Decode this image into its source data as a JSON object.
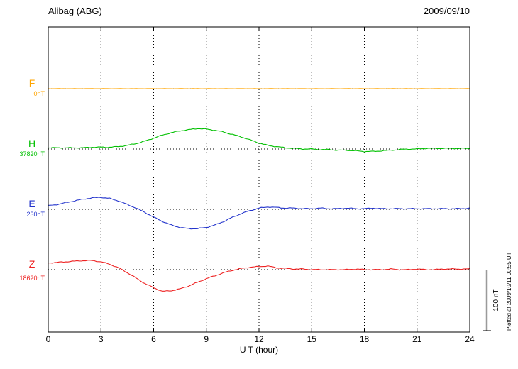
{
  "header": {
    "title": "Alibag (ABG)",
    "date": "2009/09/10"
  },
  "x_axis": {
    "label": "U T (hour)",
    "ticks": [
      0,
      3,
      6,
      9,
      12,
      15,
      18,
      21,
      24
    ],
    "min": 0,
    "max": 24
  },
  "scale_bar": {
    "label": "100 nT",
    "span_nT": 100
  },
  "footnote": "Plotted at 2009/10/11 00:55 UT",
  "colors": {
    "F": "#FFA500",
    "H": "#00C000",
    "E": "#2233CC",
    "Z": "#EE2222",
    "axis": "#000000"
  },
  "chart_data": {
    "type": "line",
    "title": "Alibag (ABG) magnetogram 2009/09/10",
    "xlabel": "U T (hour)",
    "x_range": [
      0,
      24
    ],
    "y_units": "nT offset from component baseline",
    "scale_nT_per_division": 100,
    "grid": "dotted vertical every 3 h, dotted horizontal at each component baseline",
    "x": [
      0,
      0.5,
      1,
      1.5,
      2,
      2.5,
      3,
      3.5,
      4,
      4.5,
      5,
      5.5,
      6,
      6.5,
      7,
      7.5,
      8,
      8.5,
      9,
      9.5,
      10,
      10.5,
      11,
      11.5,
      12,
      12.5,
      13,
      13.5,
      14,
      14.5,
      15,
      15.5,
      16,
      16.5,
      17,
      17.5,
      18,
      18.5,
      19,
      19.5,
      20,
      20.5,
      21,
      21.5,
      22,
      22.5,
      23,
      23.5,
      24
    ],
    "series": [
      {
        "name": "F",
        "baseline_label": "0nT",
        "color": "#FFA500",
        "values": [
          0,
          0,
          0,
          0,
          0,
          0,
          0,
          0,
          0,
          0,
          0,
          0,
          0,
          0,
          0,
          0,
          0,
          0,
          0,
          0,
          0,
          0,
          0,
          0,
          0,
          0,
          0,
          0,
          0,
          0,
          0,
          0,
          0,
          0,
          0,
          0,
          0,
          0,
          0,
          0,
          0,
          0,
          0,
          0,
          0,
          0,
          0,
          0,
          0
        ]
      },
      {
        "name": "H",
        "baseline_label": "37820nT",
        "color": "#00C000",
        "values": [
          2,
          2,
          2,
          2,
          2,
          3,
          3,
          3,
          4,
          6,
          9,
          13,
          18,
          23,
          27,
          30,
          32,
          34,
          33,
          31,
          28,
          24,
          20,
          15,
          10,
          6,
          4,
          2,
          1,
          0,
          0,
          -1,
          -1,
          -2,
          -2,
          -3,
          -4,
          -4,
          -3,
          -2,
          -1,
          0,
          0,
          1,
          1,
          1,
          1,
          1,
          1
        ]
      },
      {
        "name": "E",
        "baseline_label": "230nT",
        "color": "#2233CC",
        "values": [
          6,
          8,
          11,
          14,
          17,
          19,
          20,
          18,
          14,
          8,
          2,
          -5,
          -13,
          -20,
          -26,
          -30,
          -32,
          -32,
          -30,
          -26,
          -20,
          -13,
          -7,
          -2,
          2,
          4,
          3,
          2,
          2,
          1,
          1,
          2,
          1,
          1,
          2,
          1,
          1,
          2,
          1,
          1,
          1,
          1,
          1,
          1,
          1,
          1,
          1,
          1,
          2
        ]
      },
      {
        "name": "Z",
        "baseline_label": "18620nT",
        "color": "#EE2222",
        "values": [
          11,
          12,
          13,
          14,
          15,
          15,
          13,
          9,
          3,
          -5,
          -14,
          -23,
          -30,
          -36,
          -35,
          -32,
          -27,
          -21,
          -15,
          -10,
          -5,
          -1,
          2,
          4,
          5,
          6,
          3,
          2,
          1,
          1,
          0,
          0,
          0,
          0,
          0,
          1,
          0,
          0,
          0,
          1,
          0,
          0,
          1,
          0,
          0,
          1,
          1,
          1,
          1
        ]
      }
    ]
  }
}
